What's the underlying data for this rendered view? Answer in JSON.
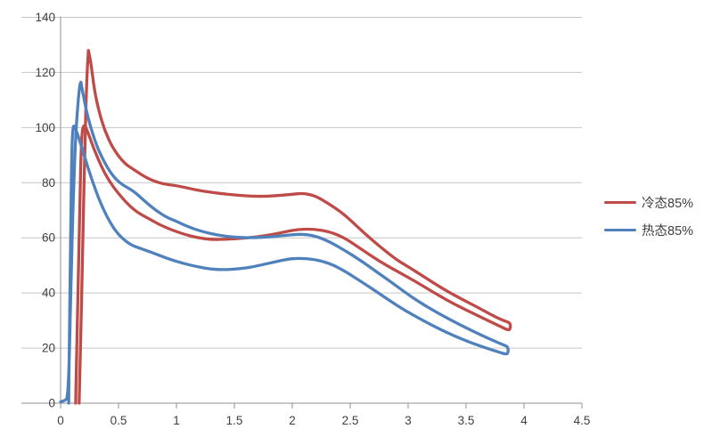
{
  "chart_data": {
    "type": "line",
    "title": "",
    "grid": "horizontal-major",
    "legend_position": "right",
    "xlim": [
      0,
      4.5
    ],
    "ylim": [
      0,
      140
    ],
    "x_tick_labels": [
      "0",
      "0.5",
      "1",
      "1.5",
      "2",
      "2.5",
      "3",
      "3.5",
      "4",
      "4.5"
    ],
    "y_tick_labels": [
      "0",
      "20",
      "40",
      "60",
      "80",
      "100",
      "120",
      "140"
    ],
    "series": [
      {
        "name": "冷态85%",
        "color": "#BE4B48",
        "shape": "closed hysteresis loop: steep rise, peak 128, plateau ~75, bump 76 at x=2.1, falls to 29 at x=3.88, returns along lower branch (min ~59 at x=1.35, bump 63 at x=2.1) back to ~101 at x=0.2 then drops to 0",
        "points": [
          [
            0.16,
            0
          ],
          [
            0.17,
            15
          ],
          [
            0.19,
            55
          ],
          [
            0.21,
            95
          ],
          [
            0.225,
            117
          ],
          [
            0.24,
            128
          ],
          [
            0.24,
            128
          ],
          [
            0.26,
            124
          ],
          [
            0.29,
            114
          ],
          [
            0.33,
            106
          ],
          [
            0.38,
            99
          ],
          [
            0.45,
            92.5
          ],
          [
            0.55,
            87
          ],
          [
            0.63,
            84.8
          ],
          [
            0.75,
            81.5
          ],
          [
            0.88,
            79.5
          ],
          [
            1.0,
            79
          ],
          [
            1.15,
            77.5
          ],
          [
            1.3,
            76.5
          ],
          [
            1.5,
            75.5
          ],
          [
            1.7,
            75
          ],
          [
            1.85,
            75.2
          ],
          [
            2.0,
            75.8
          ],
          [
            2.1,
            76.2
          ],
          [
            2.2,
            75.2
          ],
          [
            2.3,
            72.8
          ],
          [
            2.45,
            68.5
          ],
          [
            2.6,
            62.5
          ],
          [
            2.75,
            57
          ],
          [
            2.9,
            52
          ],
          [
            3.02,
            49
          ],
          [
            3.15,
            45.5
          ],
          [
            3.3,
            41.5
          ],
          [
            3.45,
            38
          ],
          [
            3.6,
            34.8
          ],
          [
            3.72,
            32
          ],
          [
            3.82,
            30
          ],
          [
            3.88,
            29.2
          ],
          [
            3.885,
            27.5
          ],
          [
            3.87,
            26.3
          ],
          [
            3.78,
            28.2
          ],
          [
            3.65,
            30.8
          ],
          [
            3.5,
            33.8
          ],
          [
            3.35,
            37
          ],
          [
            3.2,
            40.7
          ],
          [
            3.05,
            44.5
          ],
          [
            2.9,
            48
          ],
          [
            2.75,
            51.5
          ],
          [
            2.6,
            55.8
          ],
          [
            2.45,
            60
          ],
          [
            2.32,
            62.3
          ],
          [
            2.18,
            63.2
          ],
          [
            2.05,
            63.1
          ],
          [
            1.92,
            62
          ],
          [
            1.78,
            60.8
          ],
          [
            1.62,
            60
          ],
          [
            1.48,
            59.6
          ],
          [
            1.32,
            59.3
          ],
          [
            1.18,
            60
          ],
          [
            1.05,
            61.5
          ],
          [
            0.9,
            63.8
          ],
          [
            0.78,
            66.5
          ],
          [
            0.63,
            70
          ],
          [
            0.5,
            76
          ],
          [
            0.42,
            80.5
          ],
          [
            0.35,
            86
          ],
          [
            0.28,
            93
          ],
          [
            0.23,
            99
          ],
          [
            0.2,
            101.5
          ],
          [
            0.18,
            97
          ],
          [
            0.165,
            70
          ],
          [
            0.15,
            40
          ],
          [
            0.135,
            10
          ],
          [
            0.13,
            0
          ]
        ]
      },
      {
        "name": "热态85%",
        "color": "#4F81BD",
        "shape": "closed hysteresis loop: steep rise, peak 116.5, plateau ~60, bump 61 at x=2.1, falls to 20.5 at x=3.86, returns along lower branch (min ~48.4 at x=1.4, bump 52.6 at x=2.05) back to ~101 at x=0.1 then drops to 0",
        "points": [
          [
            0.0,
            0.5
          ],
          [
            0.04,
            1
          ],
          [
            0.06,
            2
          ],
          [
            0.075,
            15
          ],
          [
            0.09,
            45
          ],
          [
            0.11,
            75
          ],
          [
            0.13,
            97
          ],
          [
            0.15,
            109
          ],
          [
            0.165,
            115.5
          ],
          [
            0.175,
            116.5
          ],
          [
            0.175,
            116.5
          ],
          [
            0.19,
            113
          ],
          [
            0.22,
            106.5
          ],
          [
            0.26,
            100
          ],
          [
            0.31,
            93.5
          ],
          [
            0.37,
            88
          ],
          [
            0.44,
            83
          ],
          [
            0.52,
            79.5
          ],
          [
            0.63,
            77
          ],
          [
            0.72,
            73.5
          ],
          [
            0.82,
            70
          ],
          [
            0.92,
            67.3
          ],
          [
            1.0,
            66
          ],
          [
            1.1,
            64
          ],
          [
            1.22,
            62.3
          ],
          [
            1.35,
            61
          ],
          [
            1.5,
            60.2
          ],
          [
            1.65,
            60
          ],
          [
            1.8,
            60.3
          ],
          [
            1.92,
            60.8
          ],
          [
            2.02,
            61.2
          ],
          [
            2.12,
            61.3
          ],
          [
            2.22,
            60.4
          ],
          [
            2.32,
            58.6
          ],
          [
            2.45,
            55.5
          ],
          [
            2.6,
            51.5
          ],
          [
            2.75,
            47
          ],
          [
            2.9,
            42.5
          ],
          [
            3.02,
            38.8
          ],
          [
            3.15,
            35.3
          ],
          [
            3.3,
            31.7
          ],
          [
            3.45,
            28.4
          ],
          [
            3.6,
            25.3
          ],
          [
            3.72,
            23
          ],
          [
            3.82,
            21.2
          ],
          [
            3.86,
            20.5
          ],
          [
            3.865,
            19
          ],
          [
            3.855,
            17.6
          ],
          [
            3.78,
            18.6
          ],
          [
            3.65,
            20.3
          ],
          [
            3.5,
            22.6
          ],
          [
            3.35,
            25.3
          ],
          [
            3.2,
            28.4
          ],
          [
            3.05,
            31.8
          ],
          [
            2.9,
            35.5
          ],
          [
            2.75,
            39.8
          ],
          [
            2.6,
            44
          ],
          [
            2.45,
            48
          ],
          [
            2.32,
            50.8
          ],
          [
            2.18,
            52.3
          ],
          [
            2.05,
            52.6
          ],
          [
            1.95,
            52.2
          ],
          [
            1.82,
            51
          ],
          [
            1.68,
            49.6
          ],
          [
            1.55,
            48.8
          ],
          [
            1.42,
            48.4
          ],
          [
            1.3,
            48.6
          ],
          [
            1.18,
            49.5
          ],
          [
            1.05,
            50.8
          ],
          [
            0.92,
            52.5
          ],
          [
            0.8,
            54.5
          ],
          [
            0.7,
            56
          ],
          [
            0.6,
            57.5
          ],
          [
            0.5,
            61
          ],
          [
            0.42,
            66
          ],
          [
            0.34,
            73
          ],
          [
            0.27,
            81
          ],
          [
            0.21,
            89
          ],
          [
            0.16,
            96
          ],
          [
            0.125,
            100
          ],
          [
            0.105,
            101
          ],
          [
            0.095,
            88
          ],
          [
            0.085,
            55
          ],
          [
            0.075,
            20
          ],
          [
            0.07,
            0
          ]
        ]
      }
    ]
  },
  "colors": {
    "background": "#FFFFFF",
    "gridline": "#C6C6C6",
    "axis": "#919191",
    "tick_label": "#3F3F3F",
    "legend_label": "#3D3D3D"
  }
}
